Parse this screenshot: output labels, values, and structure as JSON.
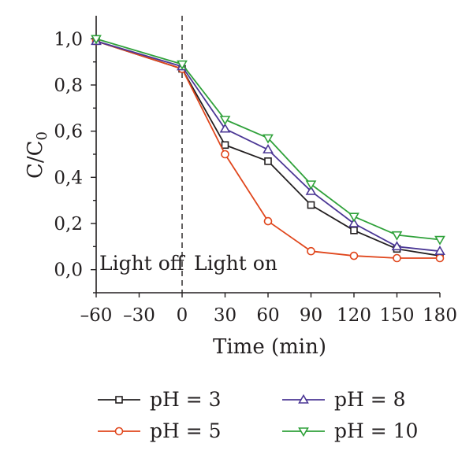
{
  "chart_data": {
    "type": "line",
    "xlabel": "Time (min)",
    "ylabel_main": "C/C",
    "ylabel_sub": "0",
    "x": [
      -60,
      0,
      30,
      60,
      90,
      120,
      150,
      180
    ],
    "xlim": [
      -60,
      180
    ],
    "ylim": [
      -0.1,
      1.1
    ],
    "x_ticks": [
      -60,
      -30,
      0,
      30,
      60,
      90,
      120,
      150,
      180
    ],
    "x_tick_labels": [
      "–60",
      "–30",
      "0",
      "30",
      "60",
      "90",
      "120",
      "150",
      "180"
    ],
    "y_ticks": [
      0.0,
      0.2,
      0.4,
      0.6,
      0.8,
      1.0
    ],
    "y_tick_labels": [
      "0,0",
      "0,2",
      "0,4",
      "0,6",
      "0,8",
      "1,0"
    ],
    "grid": false,
    "legend_position": "bottom",
    "vline_x": 0,
    "annotations": [
      "Light off",
      "Light on"
    ],
    "series": [
      {
        "name": "pH = 3",
        "color": "#231f20",
        "marker": "square",
        "values": [
          0.99,
          0.87,
          0.54,
          0.47,
          0.28,
          0.17,
          0.09,
          0.06
        ]
      },
      {
        "name": "pH = 5",
        "color": "#e0461c",
        "marker": "circle",
        "values": [
          0.99,
          0.87,
          0.5,
          0.21,
          0.08,
          0.06,
          0.05,
          0.05
        ]
      },
      {
        "name": "pH = 8",
        "color": "#4b3795",
        "marker": "triangle-up",
        "values": [
          0.99,
          0.88,
          0.61,
          0.52,
          0.34,
          0.2,
          0.1,
          0.08
        ]
      },
      {
        "name": "pH = 10",
        "color": "#2fa13a",
        "marker": "triangle-down",
        "values": [
          1.0,
          0.89,
          0.65,
          0.57,
          0.37,
          0.23,
          0.15,
          0.13
        ]
      }
    ]
  }
}
